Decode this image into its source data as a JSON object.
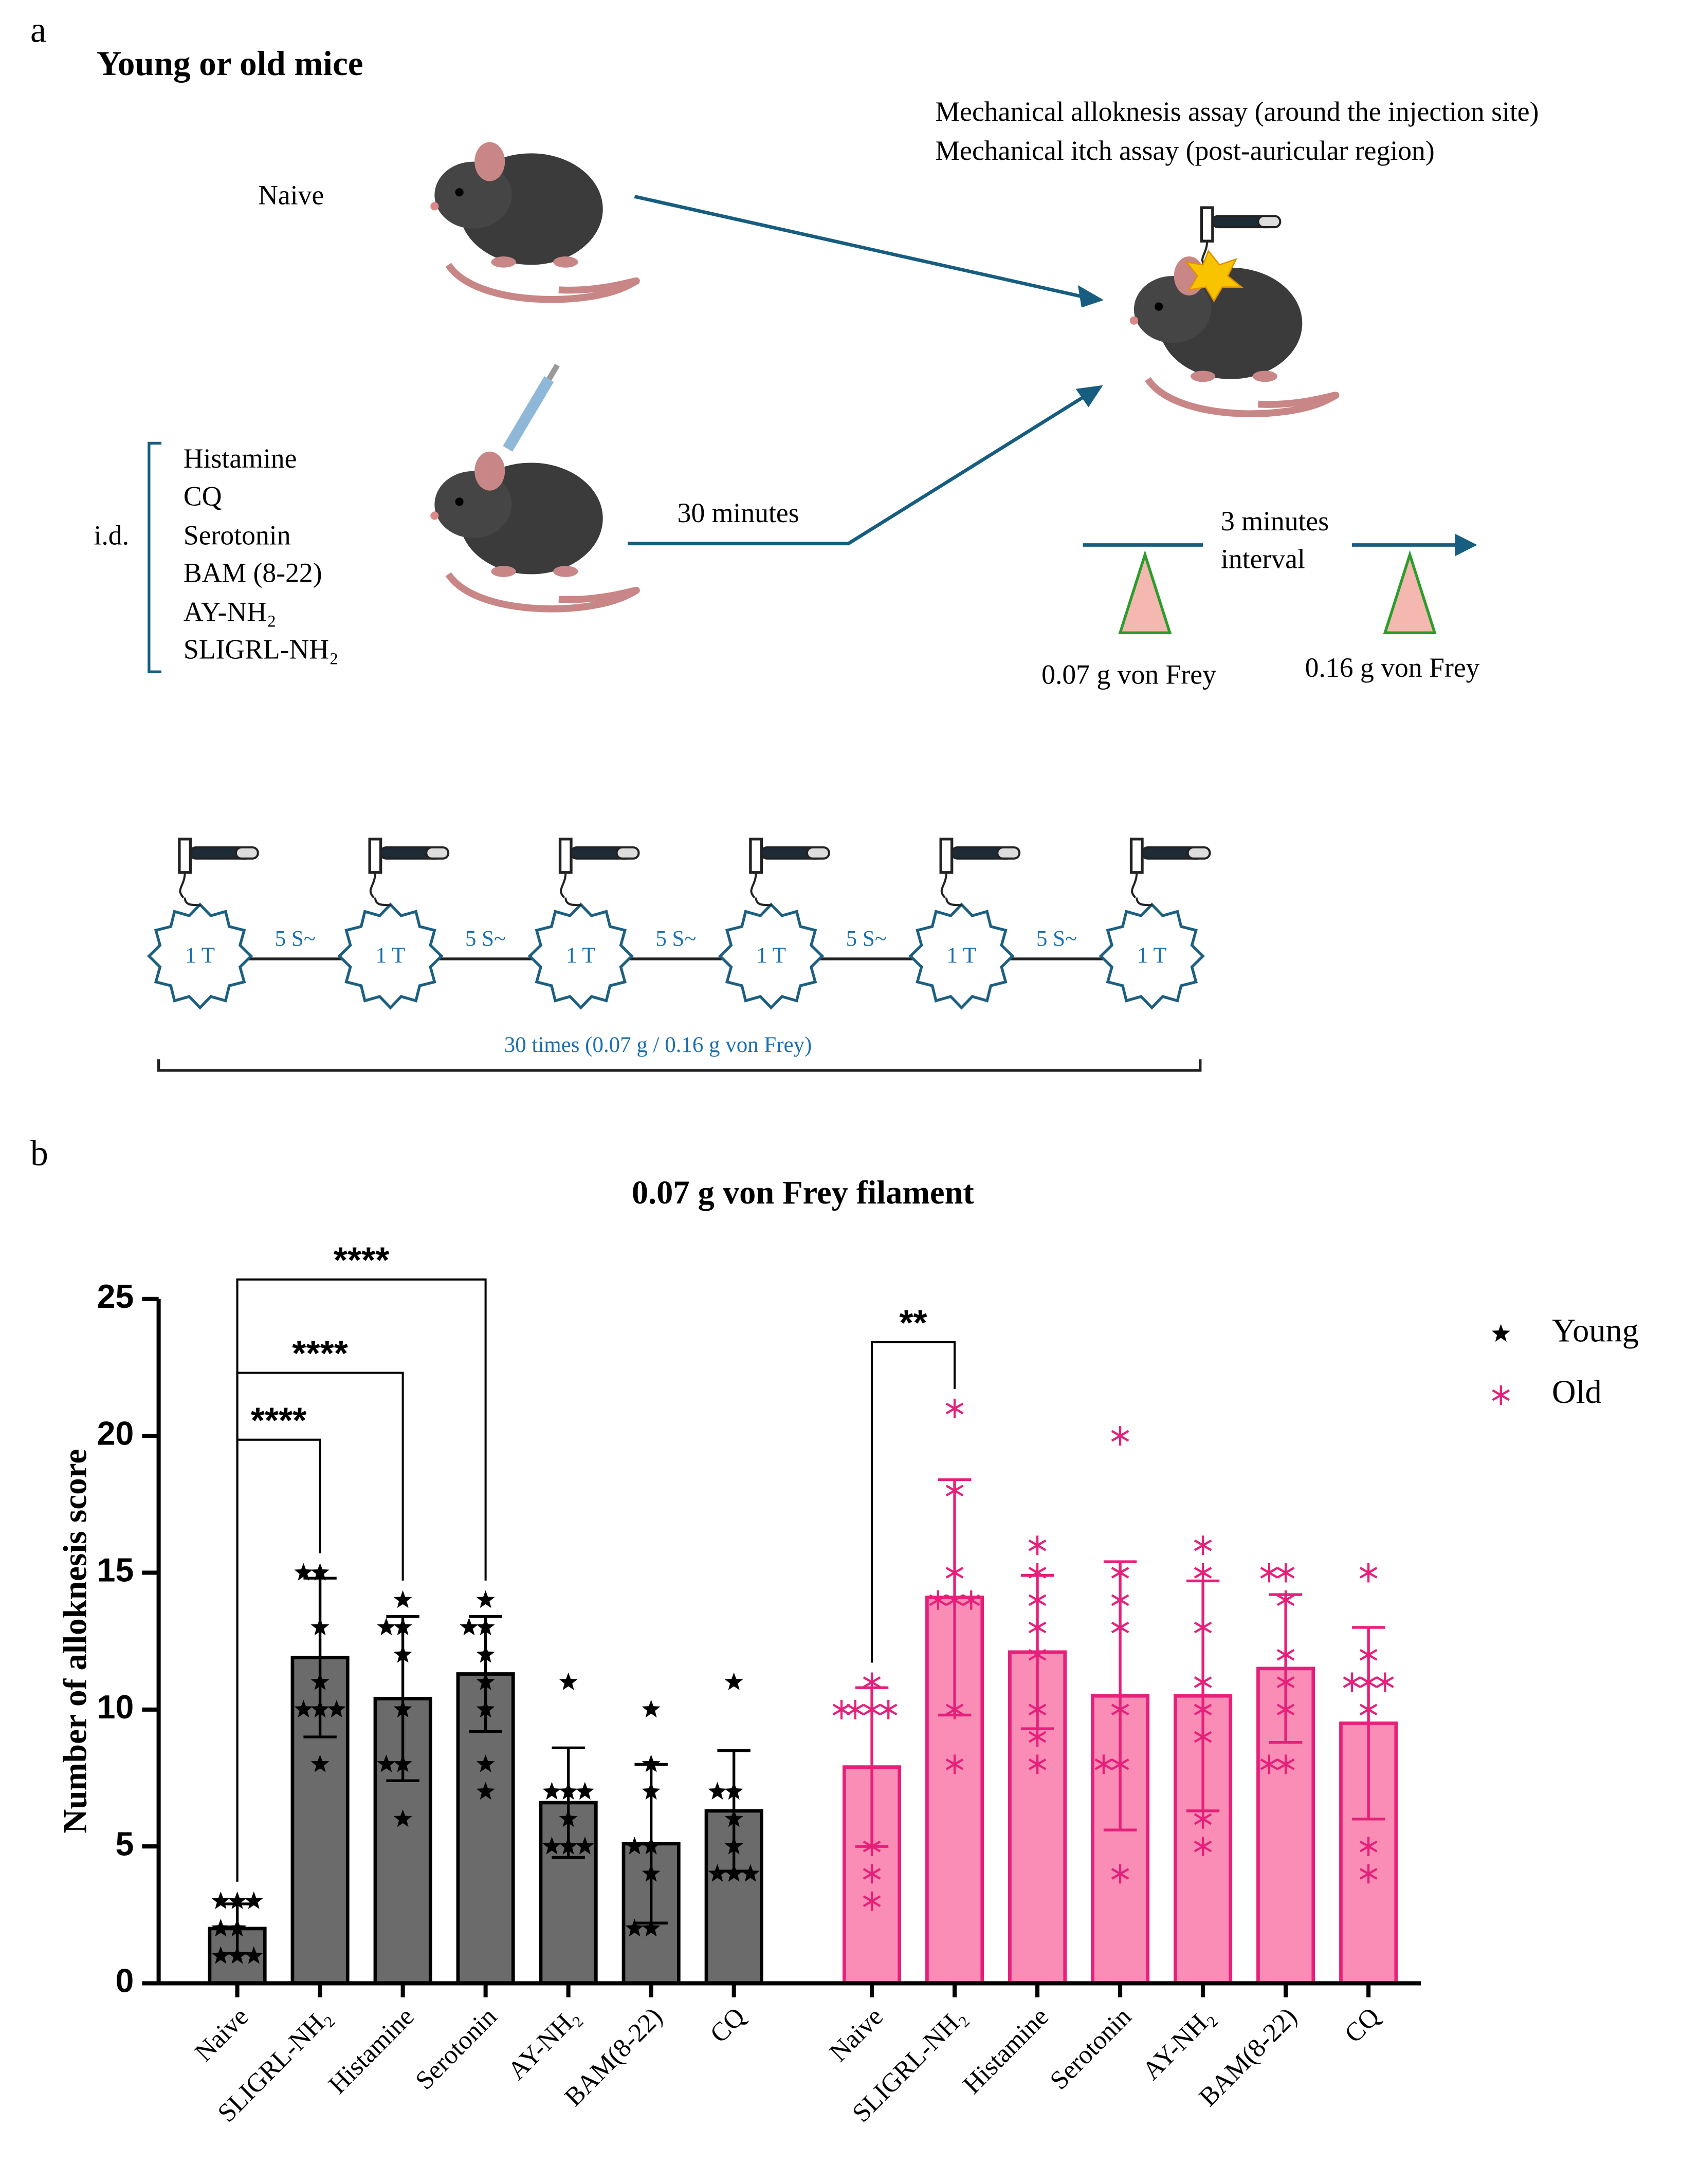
{
  "panel_a": {
    "label": "a",
    "title": "Young or old mice",
    "naive": "Naive",
    "assays": [
      "Mechanical alloknesis assay (around the injection site)",
      "Mechanical itch assay (post-auricular region)"
    ],
    "route": "i.d.",
    "treatments": [
      "Histamine",
      "CQ",
      "Serotonin",
      "BAM (8-22)",
      "AY-NH₂",
      "SLIGRL-NH₂"
    ],
    "wait": "30 minutes",
    "interval": [
      "3 minutes",
      "interval"
    ],
    "filaments": [
      "0.07 g von Frey",
      "0.16 g von Frey"
    ],
    "stimulus": [
      "1 T",
      "1 T",
      "1 T",
      "1 T",
      "1 T",
      "1 T"
    ],
    "gaps": [
      "5 S~",
      "5 S~",
      "5 S~",
      "5 S~",
      "5 S~"
    ],
    "repeat": "30 times (0.07 g / 0.16 g von Frey)"
  },
  "chart_data": {
    "type": "bar",
    "panel_label": "b",
    "title": "0.07 g von Frey filament",
    "y_label": "Number of alloknesis score",
    "categories": [
      "Naive",
      "SLIGRL-NH₂",
      "Histamine",
      "Serotonin",
      "AY-NH₂",
      "BAM(8-22)",
      "CQ"
    ],
    "ylim": [
      0,
      25
    ],
    "yticks": [
      0,
      5,
      10,
      15,
      20,
      25
    ],
    "series": [
      {
        "name": "Young",
        "color": "#6b6b6b",
        "edge_color": "#000000",
        "marker": "star",
        "values": [
          2,
          11.9,
          10.4,
          11.3,
          6.6,
          5.1,
          6.3
        ],
        "errors": [
          0.9,
          2.9,
          3.0,
          2.1,
          2.0,
          2.9,
          2.2
        ],
        "points": [
          [
            3,
            3,
            3,
            2,
            2,
            1,
            1,
            1
          ],
          [
            15,
            15,
            13,
            11,
            10,
            10,
            10,
            8
          ],
          [
            14,
            13,
            13,
            12,
            10,
            8,
            8,
            6
          ],
          [
            14,
            13,
            13,
            12,
            11,
            10,
            8,
            7
          ],
          [
            11,
            7,
            7,
            7,
            6,
            5,
            5,
            5
          ],
          [
            10,
            8,
            7,
            5,
            5,
            4,
            2,
            2
          ],
          [
            11,
            7,
            7,
            6,
            5,
            4,
            4,
            4
          ]
        ]
      },
      {
        "name": "Old",
        "color": "#f98db6",
        "edge_color": "#e6207a",
        "marker": "asterisk",
        "values": [
          7.9,
          14.1,
          12.1,
          10.5,
          10.5,
          11.5,
          9.5
        ],
        "errors": [
          2.9,
          4.3,
          2.8,
          4.9,
          4.2,
          2.7,
          3.5
        ],
        "points": [
          [
            11,
            10,
            10,
            10,
            10,
            5,
            4,
            3
          ],
          [
            21,
            18,
            15,
            14,
            14,
            14,
            10,
            8
          ],
          [
            16,
            15,
            14,
            13,
            12,
            10,
            9,
            8
          ],
          [
            20,
            15,
            14,
            13,
            10,
            8,
            8,
            4
          ],
          [
            16,
            15,
            13,
            11,
            10,
            9,
            6,
            5
          ],
          [
            15,
            15,
            14,
            12,
            11,
            10,
            8,
            8
          ],
          [
            15,
            12,
            11,
            11,
            11,
            10,
            5,
            4
          ]
        ]
      }
    ],
    "annotations": [
      {
        "label": "****",
        "series": "Young",
        "pair": [
          "Naive",
          "SLIGRL-NH₂"
        ]
      },
      {
        "label": "****",
        "series": "Young",
        "pair": [
          "Naive",
          "Histamine"
        ]
      },
      {
        "label": "****",
        "series": "Young",
        "pair": [
          "Naive",
          "Serotonin"
        ]
      },
      {
        "label": "**",
        "series": "Old",
        "pair": [
          "Naive",
          "SLIGRL-NH₂"
        ]
      }
    ],
    "legend": "upper right"
  }
}
